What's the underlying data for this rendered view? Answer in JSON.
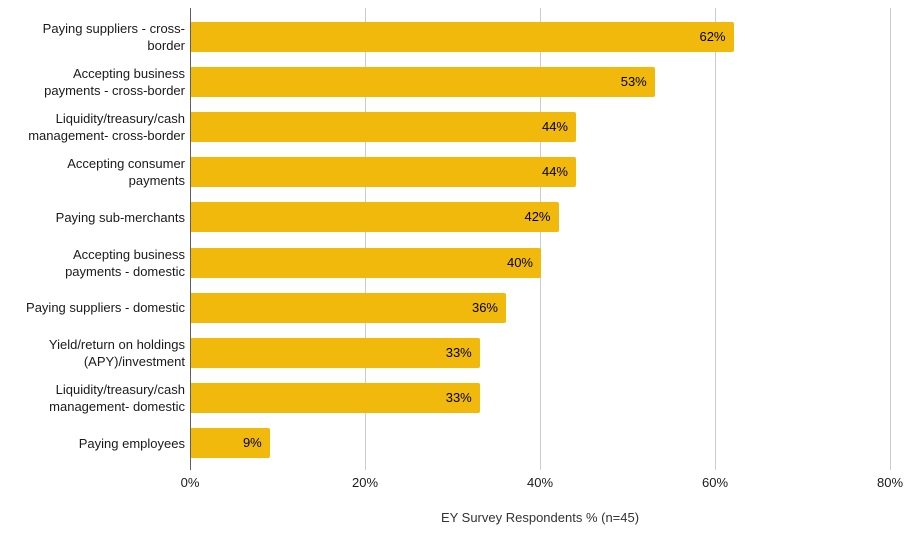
{
  "chart_data": {
    "type": "bar",
    "orientation": "horizontal",
    "title": "",
    "xlabel": "EY Survey Respondents % (n=45)",
    "ylabel": "",
    "xlim": [
      0,
      80
    ],
    "xtick_values": [
      0,
      20,
      40,
      60,
      80
    ],
    "xtick_labels": [
      "0%",
      "20%",
      "40%",
      "60%",
      "80%"
    ],
    "grid": true,
    "legend_position": "none",
    "bar_color": "#F0B90B",
    "annotation_color": "#000000",
    "gridline_color": "#cccccc",
    "baseline_color": "#5f5f5f",
    "categories": [
      "Paying suppliers - cross-border",
      "Accepting business payments - cross-border",
      "Liquidity/treasury/cash management- cross-border",
      "Accepting consumer payments",
      "Paying sub-merchants",
      "Accepting business payments - domestic",
      "Paying suppliers - domestic",
      "Yield/return on holdings (APY)/investment",
      "Liquidity/treasury/cash management- domestic",
      "Paying employees"
    ],
    "category_label_lines": [
      [
        "Paying suppliers - cross-",
        "border"
      ],
      [
        "Accepting business",
        "payments - cross-border"
      ],
      [
        "Liquidity/treasury/cash",
        "management- cross-border"
      ],
      [
        "Accepting consumer",
        "payments"
      ],
      [
        "Paying sub-merchants"
      ],
      [
        "Accepting business",
        "payments - domestic"
      ],
      [
        "Paying suppliers - domestic"
      ],
      [
        "Yield/return on holdings",
        "(APY)/investment"
      ],
      [
        "Liquidity/treasury/cash",
        "management- domestic"
      ],
      [
        "Paying employees"
      ]
    ],
    "values": [
      62,
      53,
      44,
      44,
      42,
      40,
      36,
      33,
      33,
      9
    ],
    "value_labels": [
      "62%",
      "53%",
      "44%",
      "44%",
      "42%",
      "40%",
      "36%",
      "33%",
      "33%",
      "9%"
    ]
  }
}
